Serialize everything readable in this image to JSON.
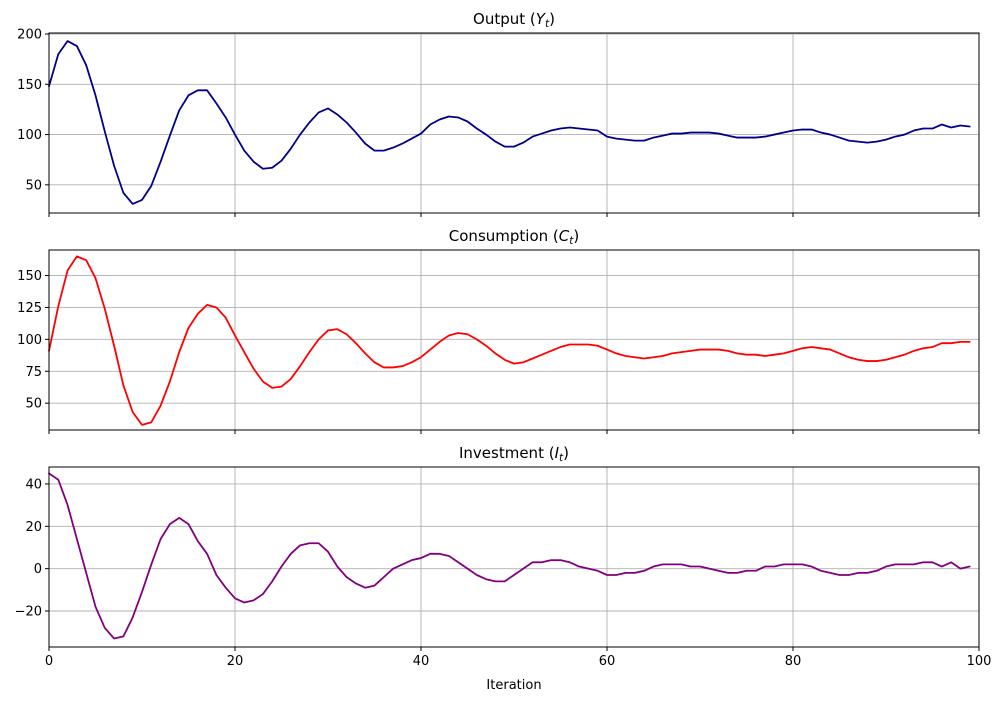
{
  "chart_data": [
    {
      "type": "line",
      "title_main": "Output (",
      "title_var": "Y",
      "title_sub": "t",
      "title_end": ")",
      "xlim": [
        0,
        100
      ],
      "ylim": [
        22,
        201
      ],
      "xticks": [
        0,
        20,
        40,
        60,
        80,
        100
      ],
      "yticks": [
        50,
        100,
        150,
        200
      ],
      "grid": true,
      "color": "#00008b",
      "x_start": 0,
      "values": [
        148,
        180,
        193,
        188,
        169,
        139,
        103,
        69,
        42,
        31,
        35,
        49,
        73,
        99,
        124,
        139,
        144,
        144,
        131,
        117,
        100,
        84,
        73,
        66,
        67,
        74,
        86,
        100,
        112,
        122,
        126,
        120,
        112,
        102,
        91,
        84,
        84,
        87,
        91,
        96,
        101,
        110,
        115,
        118,
        117,
        113,
        106,
        100,
        93,
        88,
        88,
        92,
        98,
        101,
        104,
        106,
        107,
        106,
        105,
        104,
        98,
        96,
        95,
        94,
        94,
        97,
        99,
        101,
        101,
        102,
        102,
        102,
        101,
        99,
        97,
        97,
        97,
        98,
        100,
        102,
        104,
        105,
        105,
        102,
        100,
        97,
        94,
        93,
        92,
        93,
        95,
        98,
        100,
        104,
        106,
        106,
        110,
        107,
        109,
        108
      ]
    },
    {
      "type": "line",
      "title_main": "Consumption (",
      "title_var": "C",
      "title_sub": "t",
      "title_end": ")",
      "xlim": [
        0,
        100
      ],
      "ylim": [
        29,
        170
      ],
      "xticks": [
        0,
        20,
        40,
        60,
        80,
        100
      ],
      "yticks": [
        50,
        75,
        100,
        125,
        150
      ],
      "grid": true,
      "color": "#ff0000",
      "x_start": 0,
      "values": [
        91,
        126,
        154,
        165,
        162,
        148,
        124,
        95,
        64,
        43,
        33,
        35,
        48,
        67,
        90,
        109,
        120,
        127,
        125,
        117,
        103,
        90,
        77,
        67,
        62,
        63,
        69,
        79,
        90,
        100,
        107,
        108,
        104,
        97,
        89,
        82,
        78,
        78,
        79,
        82,
        86,
        92,
        98,
        103,
        105,
        104,
        100,
        95,
        89,
        84,
        81,
        82,
        85,
        88,
        91,
        94,
        96,
        96,
        96,
        95,
        92,
        89,
        87,
        86,
        85,
        86,
        87,
        89,
        90,
        91,
        92,
        92,
        92,
        91,
        89,
        88,
        88,
        87,
        88,
        89,
        91,
        93,
        94,
        93,
        92,
        89,
        86,
        84,
        83,
        83,
        84,
        86,
        88,
        91,
        93,
        94,
        97,
        97,
        98,
        98
      ]
    },
    {
      "type": "line",
      "title_main": "Investment (",
      "title_var": "I",
      "title_sub": "t",
      "title_end": ")",
      "xlim": [
        0,
        100
      ],
      "ylim": [
        -37,
        48
      ],
      "xticks": [
        0,
        20,
        40,
        60,
        80,
        100
      ],
      "yticks": [
        -20,
        0,
        20,
        40
      ],
      "grid": true,
      "color": "#800080",
      "xlabel": "Iteration",
      "x_start": 0,
      "values": [
        45,
        42,
        30,
        14,
        -2,
        -18,
        -28,
        -33,
        -32,
        -23,
        -11,
        2,
        14,
        21,
        24,
        21,
        13,
        7,
        -3,
        -9,
        -14,
        -16,
        -15,
        -12,
        -6,
        1,
        7,
        11,
        12,
        12,
        8,
        1,
        -4,
        -7,
        -9,
        -8,
        -4,
        0,
        2,
        4,
        5,
        7,
        7,
        6,
        3,
        0,
        -3,
        -5,
        -6,
        -6,
        -3,
        0,
        3,
        3,
        4,
        4,
        3,
        1,
        0,
        -1,
        -3,
        -3,
        -2,
        -2,
        -1,
        1,
        2,
        2,
        2,
        1,
        1,
        0,
        -1,
        -2,
        -2,
        -1,
        -1,
        1,
        1,
        2,
        2,
        2,
        1,
        -1,
        -2,
        -3,
        -3,
        -2,
        -2,
        -1,
        1,
        2,
        2,
        2,
        3,
        3,
        1,
        3,
        0,
        1
      ]
    }
  ]
}
